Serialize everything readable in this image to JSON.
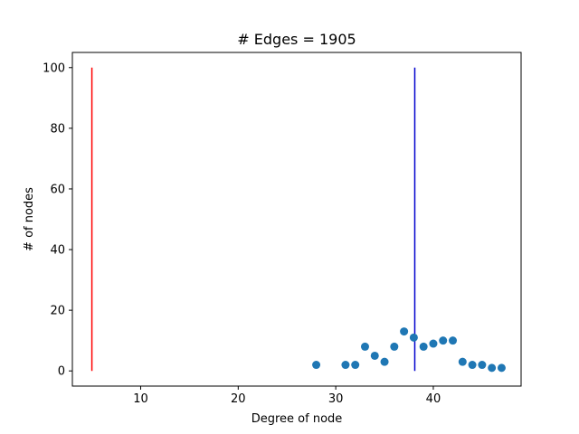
{
  "chart_data": {
    "type": "scatter",
    "title": "# Edges = 1905",
    "xlabel": "Degree of node",
    "ylabel": "# of nodes",
    "xlim": [
      3,
      49
    ],
    "ylim": [
      -5,
      105
    ],
    "xticks": [
      10,
      20,
      30,
      40
    ],
    "yticks": [
      0,
      20,
      40,
      60,
      80,
      100
    ],
    "grid": false,
    "series": [
      {
        "color": "#1f77b4",
        "points": [
          {
            "x": 28,
            "y": 2
          },
          {
            "x": 31,
            "y": 2
          },
          {
            "x": 32,
            "y": 2
          },
          {
            "x": 33,
            "y": 8
          },
          {
            "x": 34,
            "y": 5
          },
          {
            "x": 35,
            "y": 3
          },
          {
            "x": 36,
            "y": 8
          },
          {
            "x": 37,
            "y": 13
          },
          {
            "x": 38,
            "y": 11
          },
          {
            "x": 39,
            "y": 8
          },
          {
            "x": 40,
            "y": 9
          },
          {
            "x": 41,
            "y": 10
          },
          {
            "x": 42,
            "y": 10
          },
          {
            "x": 43,
            "y": 3
          },
          {
            "x": 44,
            "y": 2
          },
          {
            "x": 45,
            "y": 2
          },
          {
            "x": 46,
            "y": 1
          },
          {
            "x": 47,
            "y": 1
          }
        ]
      }
    ],
    "vlines": [
      {
        "x": 5,
        "ymin": 0,
        "ymax": 100,
        "color": "#ff0000"
      },
      {
        "x": 38.1,
        "ymin": 0,
        "ymax": 100,
        "color": "#0000cd"
      }
    ]
  }
}
